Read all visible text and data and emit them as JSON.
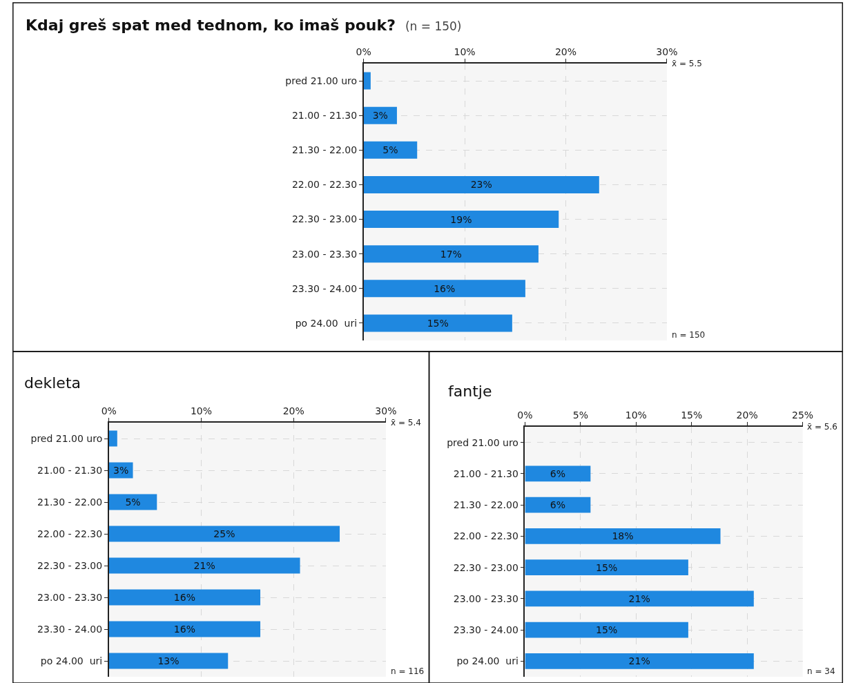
{
  "chart_data": [
    {
      "type": "bar",
      "orientation": "horizontal",
      "title": "Kdaj greš spat med tednom, ko imaš pouk?",
      "subtitle": "(n = 150)",
      "categories": [
        "pred 21.00 uro",
        "21.00 - 21.30",
        "21.30 - 22.00",
        "22.00 - 22.30",
        "22.30 - 23.00",
        "23.00 - 23.30",
        "23.30 - 24.00",
        "po 24.00  uri"
      ],
      "values": [
        0.7,
        3.3,
        5.3,
        23.3,
        19.3,
        17.3,
        16.0,
        14.7
      ],
      "value_labels": [
        null,
        "3%",
        "5%",
        "23%",
        "19%",
        "17%",
        "16%",
        "15%"
      ],
      "color": "#1f88e0",
      "xlim": [
        0,
        30
      ],
      "xticks": [
        {
          "value": 0,
          "label": "0%"
        },
        {
          "value": 10,
          "label": "10%"
        },
        {
          "value": 20,
          "label": "20%"
        },
        {
          "value": 30,
          "label": "30%"
        }
      ],
      "grid": true,
      "annotations": [
        "x̄ = 5.5",
        "n = 150"
      ]
    },
    {
      "type": "bar",
      "orientation": "horizontal",
      "title": "dekleta",
      "categories": [
        "pred 21.00 uro",
        "21.00 - 21.30",
        "21.30 - 22.00",
        "22.00 - 22.30",
        "22.30 - 23.00",
        "23.00 - 23.30",
        "23.30 - 24.00",
        "po 24.00  uri"
      ],
      "values": [
        0.9,
        2.6,
        5.2,
        25.0,
        20.7,
        16.4,
        16.4,
        12.9
      ],
      "value_labels": [
        null,
        "3%",
        "5%",
        "25%",
        "21%",
        "16%",
        "16%",
        "13%"
      ],
      "color": "#1f88e0",
      "xlim": [
        0,
        30
      ],
      "xticks": [
        {
          "value": 0,
          "label": "0%"
        },
        {
          "value": 10,
          "label": "10%"
        },
        {
          "value": 20,
          "label": "20%"
        },
        {
          "value": 30,
          "label": "30%"
        }
      ],
      "grid": true,
      "annotations": [
        "x̄ = 5.4",
        "n = 116"
      ]
    },
    {
      "type": "bar",
      "orientation": "horizontal",
      "title": "fantje",
      "categories": [
        "pred 21.00 uro",
        "21.00 - 21.30",
        "21.30 - 22.00",
        "22.00 - 22.30",
        "22.30 - 23.00",
        "23.00 - 23.30",
        "23.30 - 24.00",
        "po 24.00  uri"
      ],
      "values": [
        0,
        5.9,
        5.9,
        17.6,
        14.7,
        20.6,
        14.7,
        20.6
      ],
      "value_labels": [
        null,
        "6%",
        "6%",
        "18%",
        "15%",
        "21%",
        "15%",
        "21%"
      ],
      "color": "#1f88e0",
      "xlim": [
        0,
        25
      ],
      "xticks": [
        {
          "value": 0,
          "label": "0%"
        },
        {
          "value": 5,
          "label": "5%"
        },
        {
          "value": 10,
          "label": "10%"
        },
        {
          "value": 15,
          "label": "15%"
        },
        {
          "value": 20,
          "label": "20%"
        },
        {
          "value": 25,
          "label": "25%"
        }
      ],
      "grid": true,
      "annotations": [
        "x̄ = 5.6",
        "n = 34"
      ]
    }
  ]
}
